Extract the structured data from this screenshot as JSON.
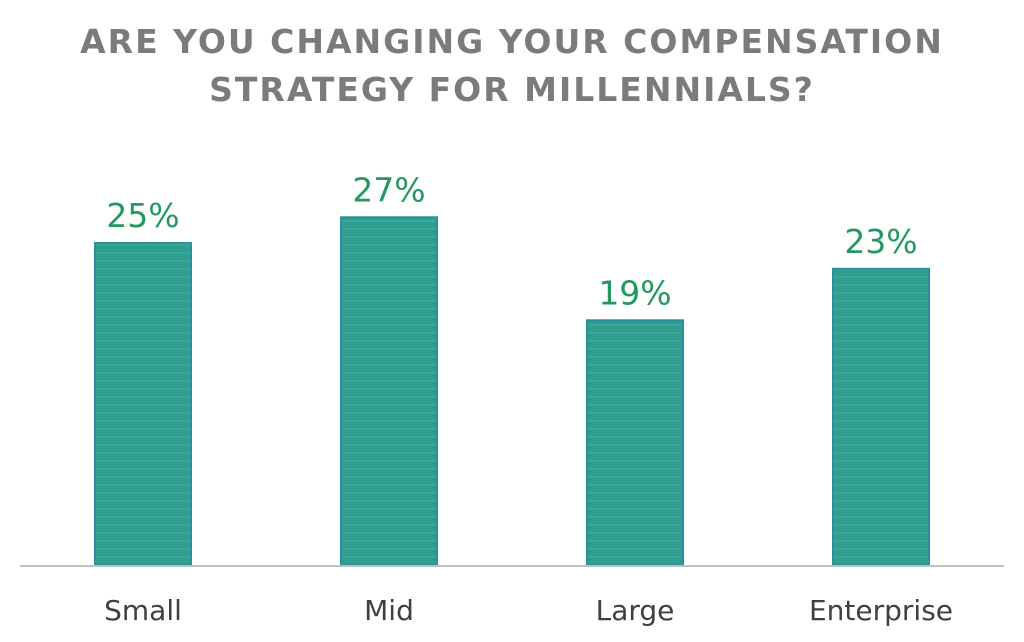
{
  "chart_data": {
    "type": "bar",
    "title": [
      "ARE YOU CHANGING YOUR COMPENSATION",
      "STRATEGY FOR MILLENNIALS?"
    ],
    "categories": [
      "Small",
      "Mid",
      "Large",
      "Enterprise"
    ],
    "values": [
      25,
      27,
      19,
      23
    ],
    "value_labels": [
      "25%",
      "27%",
      "19%",
      "23%"
    ],
    "ylim": [
      0,
      33
    ],
    "grid": false,
    "legend": "none",
    "xlabel": "",
    "ylabel": ""
  },
  "colors": {
    "bar_fill": "#2f9e8f",
    "bar_stripe": "#3aa79b",
    "bar_border": "#2b8fa0",
    "value_label": "#23985f",
    "title": "#7b7b7b",
    "axis": "#bfbfbf",
    "tick_label": "#404040"
  }
}
